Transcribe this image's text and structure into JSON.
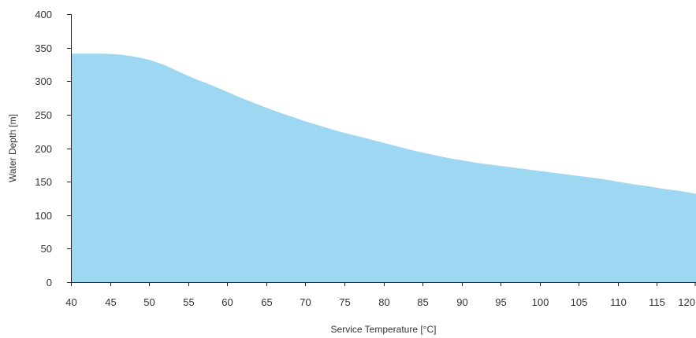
{
  "chart_data": {
    "type": "area",
    "title": "",
    "xlabel": "Service Temperature [°C]",
    "ylabel": "Water Depth [m]",
    "xlim": [
      40,
      120
    ],
    "ylim": [
      0,
      400
    ],
    "x_ticks": [
      "40",
      "45",
      "50",
      "55",
      "60",
      "65",
      "70",
      "75",
      "80",
      "85",
      "90",
      "95",
      "100",
      "105",
      "110",
      "115",
      "120"
    ],
    "y_ticks": [
      "0",
      "50",
      "100",
      "150",
      "200",
      "250",
      "300",
      "350",
      "400"
    ],
    "grid": false,
    "legend": "none",
    "fill_color": "#9dd7f2",
    "series": [
      {
        "x": [
          40,
          42,
          44,
          46,
          48,
          50,
          52,
          54,
          56,
          58,
          60,
          62,
          64,
          66,
          68,
          70,
          72,
          74,
          76,
          78,
          80,
          82,
          84,
          86,
          88,
          90,
          92,
          94,
          96,
          98,
          100,
          102,
          104,
          106,
          108,
          110,
          112,
          114,
          116,
          118,
          120
        ],
        "y": [
          341,
          341,
          341,
          340,
          337,
          332,
          324,
          313,
          303,
          294,
          284,
          274,
          265,
          256,
          248,
          240,
          233,
          226,
          220,
          214,
          208,
          202,
          196,
          191,
          186,
          182,
          178,
          175,
          172,
          169,
          166,
          163,
          160,
          157,
          154,
          150,
          146,
          143,
          139,
          136,
          132
        ]
      }
    ]
  }
}
